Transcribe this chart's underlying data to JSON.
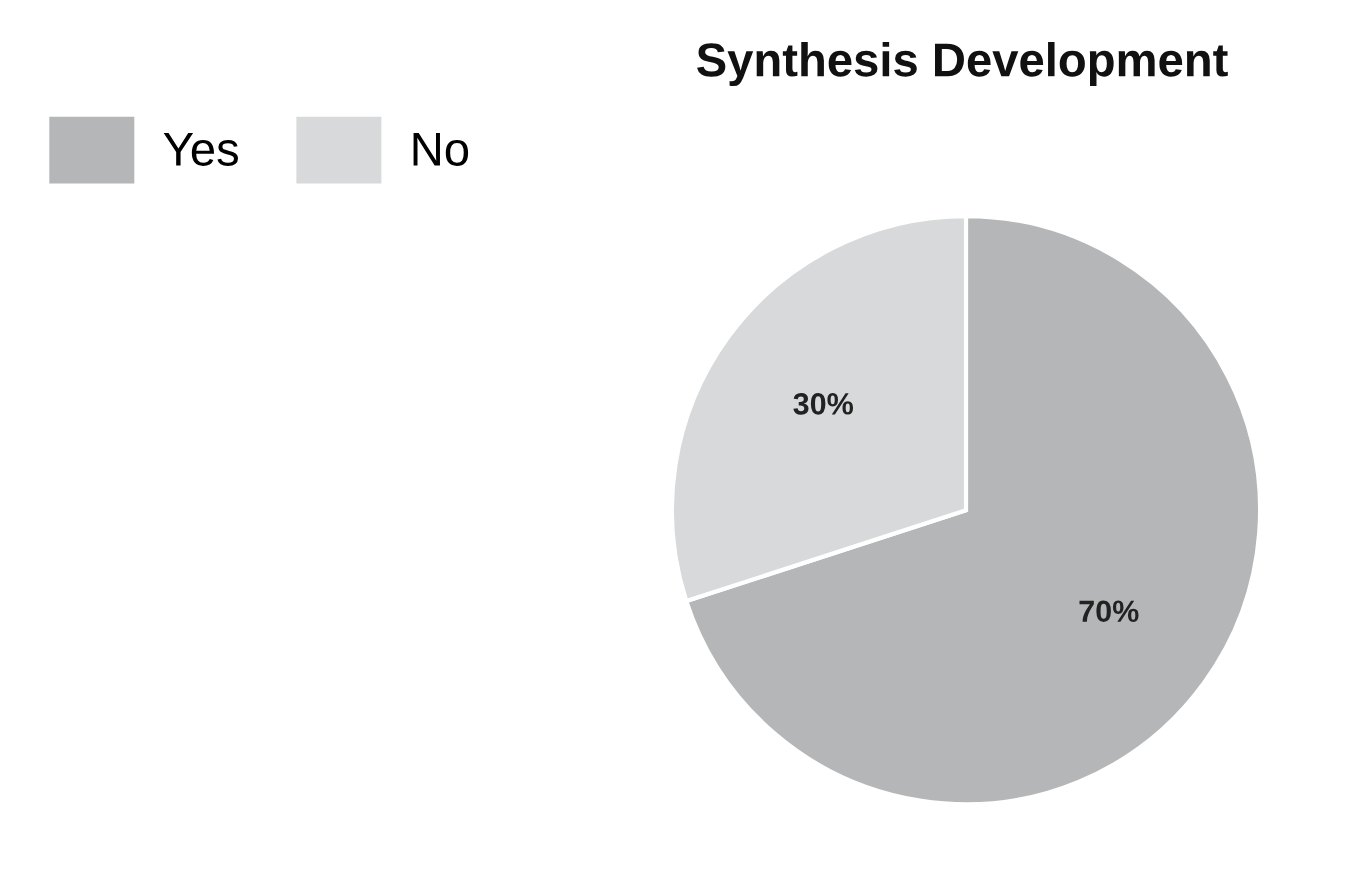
{
  "chart_data": {
    "type": "pie",
    "title": "Synthesis Development",
    "categories": [
      "Yes",
      "No"
    ],
    "values": [
      70,
      30
    ],
    "colors": [
      "#b5b6b8",
      "#d8d9da"
    ],
    "value_labels": [
      "70%",
      "30%"
    ],
    "legend": "top left"
  }
}
